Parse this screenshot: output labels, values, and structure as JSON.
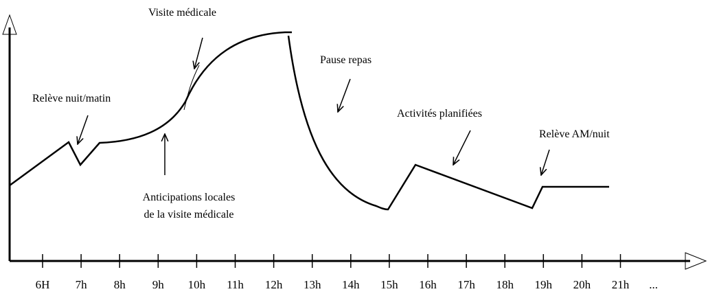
{
  "annotations": {
    "releve_nuit": "Relève nuit/matin",
    "visite": "Visite médicale",
    "anticipations": [
      "Anticipations locales",
      "de la visite médicale"
    ],
    "pause": "Pause repas",
    "activites": "Activités planifiées",
    "releve_am": "Relève AM/nuit"
  },
  "axis": {
    "labels": [
      "6H",
      "7h",
      "8h",
      "9h",
      "10h",
      "11h",
      "12h",
      "13h",
      "14h",
      "15h",
      "16h",
      "17h",
      "18h",
      "19h",
      "20h",
      "21h",
      "..."
    ]
  }
}
